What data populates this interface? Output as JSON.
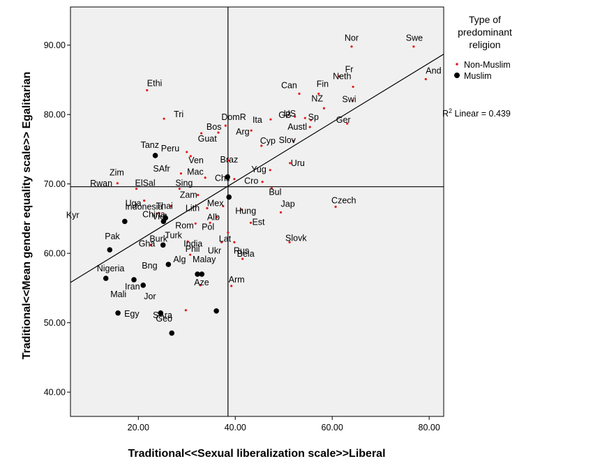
{
  "chart_data": {
    "type": "scatter",
    "xlabel": "Traditional<<Sexual liberalization scale>>Liberal",
    "ylabel": "Traditional<<Mean gender equality scale>> Egalitarian",
    "xlim": [
      6,
      83
    ],
    "ylim": [
      36.5,
      95.5
    ],
    "xticks": [
      "20.00",
      "40.00",
      "60.00",
      "80.00"
    ],
    "xtick_values": [
      20,
      40,
      60,
      80
    ],
    "yticks": [
      "40.00",
      "50.00",
      "60.00",
      "70.00",
      "80.00",
      "90.00"
    ],
    "ytick_values": [
      40,
      50,
      60,
      70,
      80,
      90
    ],
    "reference_lines": {
      "x": 38.5,
      "y": 69.6
    },
    "fit_line": {
      "label_prefix": "R",
      "label_sup": "2",
      "label_rest": " Linear = 0.439",
      "x": [
        6,
        83
      ],
      "y": [
        55.8,
        88.7
      ]
    },
    "legend": {
      "title_lines": [
        "Type of",
        "predominant",
        "religion"
      ],
      "placement": "top-right",
      "items": [
        {
          "label": "Non-Muslim",
          "color": "#e31a1c",
          "marker": "small-dot"
        },
        {
          "label": "Muslim",
          "color": "#000000",
          "marker": "large-dot"
        }
      ]
    },
    "series": [
      {
        "name": "Non-Muslim",
        "color": "#e31a1c",
        "points": [
          {
            "x": 64,
            "y": 89.8,
            "label": "Nor"
          },
          {
            "x": 76.8,
            "y": 89.8,
            "label": "Swe"
          },
          {
            "x": 61.5,
            "y": 85.5,
            "label": "Fr"
          },
          {
            "x": 79.3,
            "y": 85.1,
            "label": "And"
          },
          {
            "x": 57.2,
            "y": 83,
            "label": "Fin"
          },
          {
            "x": 53.2,
            "y": 83,
            "label": "Can"
          },
          {
            "x": 64.3,
            "y": 84,
            "label": "Neth"
          },
          {
            "x": 21.8,
            "y": 83.5,
            "label": "Ethi"
          },
          {
            "x": 58.3,
            "y": 80.9,
            "label": "NZ"
          },
          {
            "x": 64.2,
            "y": 82,
            "label": "Swi"
          },
          {
            "x": 54.4,
            "y": 79.5,
            "label": "GB"
          },
          {
            "x": 52.3,
            "y": 79.7,
            "label": "US"
          },
          {
            "x": 25.3,
            "y": 79.4,
            "label": "Tri"
          },
          {
            "x": 55.6,
            "y": 79.2,
            "label": "Sp"
          },
          {
            "x": 47.3,
            "y": 79.3,
            "label": "Ita"
          },
          {
            "x": 38,
            "y": 78.4,
            "label": "DomR"
          },
          {
            "x": 55.4,
            "y": 78.2,
            "label": "Austl"
          },
          {
            "x": 63.1,
            "y": 78.7,
            "label": "Ger"
          },
          {
            "x": 43.3,
            "y": 77.7,
            "label": "Arg"
          },
          {
            "x": 36.5,
            "y": 77.4,
            "label": "Bos"
          },
          {
            "x": 33,
            "y": 77.3,
            "label": "Guat"
          },
          {
            "x": 52,
            "y": 76.2,
            "label": "Slov"
          },
          {
            "x": 45.4,
            "y": 75.5,
            "label": "Cyp"
          },
          {
            "x": 30,
            "y": 74.6,
            "label": "Peru"
          },
          {
            "x": 30.8,
            "y": 74,
            "label": "Ven"
          },
          {
            "x": 38.6,
            "y": 73.4,
            "label": "Braz"
          },
          {
            "x": 47.2,
            "y": 72,
            "label": "Yug"
          },
          {
            "x": 51.3,
            "y": 73,
            "label": "Uru"
          },
          {
            "x": 28.8,
            "y": 71.5,
            "label": "SAfr"
          },
          {
            "x": 33.8,
            "y": 70.9,
            "label": "Mac"
          },
          {
            "x": 39.8,
            "y": 70.7,
            "label": "Chil"
          },
          {
            "x": 45.6,
            "y": 70.3,
            "label": "Cro"
          },
          {
            "x": 15.7,
            "y": 70.1,
            "label": "Zim"
          },
          {
            "x": 19.6,
            "y": 69.3,
            "label": "ElSal"
          },
          {
            "x": 28.5,
            "y": 69.3,
            "label": "Sing"
          },
          {
            "x": 32.3,
            "y": 68.4,
            "label": "Zam"
          },
          {
            "x": 47.5,
            "y": 69.4,
            "label": "Bul"
          },
          {
            "x": 21.2,
            "y": 67.6,
            "label": "Uga"
          },
          {
            "x": 26.8,
            "y": 66.8,
            "label": "Thai"
          },
          {
            "x": 34.2,
            "y": 66.5,
            "label": "Lith"
          },
          {
            "x": 37.5,
            "y": 66.8,
            "label": "Mex"
          },
          {
            "x": 41.3,
            "y": 66.3,
            "label": "Hung"
          },
          {
            "x": 60.7,
            "y": 66.7,
            "label": "Czech"
          },
          {
            "x": 24.3,
            "y": 65.8,
            "label": "China"
          },
          {
            "x": 36.2,
            "y": 65.2,
            "label": "Alb"
          },
          {
            "x": 31.8,
            "y": 64.3,
            "label": "Rom"
          },
          {
            "x": 34.8,
            "y": 64.4,
            "label": "Pol"
          },
          {
            "x": 43.2,
            "y": 64.4,
            "label": "Est"
          },
          {
            "x": 49.4,
            "y": 65.9,
            "label": "Jap"
          },
          {
            "x": 38.5,
            "y": 63,
            "label": "Lat"
          },
          {
            "x": 30.2,
            "y": 61.7,
            "label": "India"
          },
          {
            "x": 37.2,
            "y": 61.6,
            "label": "Ukr"
          },
          {
            "x": 39.8,
            "y": 61.6,
            "label": "Rus"
          },
          {
            "x": 51.2,
            "y": 61.6,
            "label": "Slovk"
          },
          {
            "x": 22.6,
            "y": 61.2,
            "label": "Burk"
          },
          {
            "x": 30.7,
            "y": 59.8,
            "label": "Phil"
          },
          {
            "x": 41.5,
            "y": 59.2,
            "label": "Bela"
          },
          {
            "x": 32.8,
            "y": 55.4,
            "label": "Aze"
          },
          {
            "x": 39.2,
            "y": 55.3,
            "label": "Arm"
          },
          {
            "x": 29.8,
            "y": 51.8,
            "label": "Geo"
          }
        ]
      },
      {
        "name": "Muslim",
        "color": "#000000",
        "points": [
          {
            "x": 23.5,
            "y": 74.1,
            "label": "Tanz"
          },
          {
            "x": 38.4,
            "y": 71,
            "label": "Rwan"
          },
          {
            "x": 38.7,
            "y": 68.1,
            "label": "Indonesia"
          },
          {
            "x": 17.2,
            "y": 64.6,
            "label": "Kyr"
          },
          {
            "x": 25.6,
            "y": 65.1,
            "label": "Viet"
          },
          {
            "x": 25.2,
            "y": 64.6,
            "label": "Turk"
          },
          {
            "x": 14.1,
            "y": 60.5,
            "label": "Pak"
          },
          {
            "x": 25.1,
            "y": 61.2,
            "label": "Gha"
          },
          {
            "x": 26.2,
            "y": 58.4,
            "label": "Alg"
          },
          {
            "x": 32.2,
            "y": 57,
            "label": "Malay"
          },
          {
            "x": 33.1,
            "y": 57,
            "label": "Bng"
          },
          {
            "x": 13.3,
            "y": 56.4,
            "label": "Nigeria"
          },
          {
            "x": 19.1,
            "y": 56.2,
            "label": "Iran"
          },
          {
            "x": 21,
            "y": 55.4,
            "label": "Jor"
          },
          {
            "x": 15.8,
            "y": 51.4,
            "label": "Egy"
          },
          {
            "x": 24.6,
            "y": 51.4,
            "label": "Mali"
          },
          {
            "x": 36.1,
            "y": 51.7,
            "label": "SAra"
          },
          {
            "x": 26.9,
            "y": 48.5,
            "label": ""
          }
        ]
      }
    ]
  }
}
